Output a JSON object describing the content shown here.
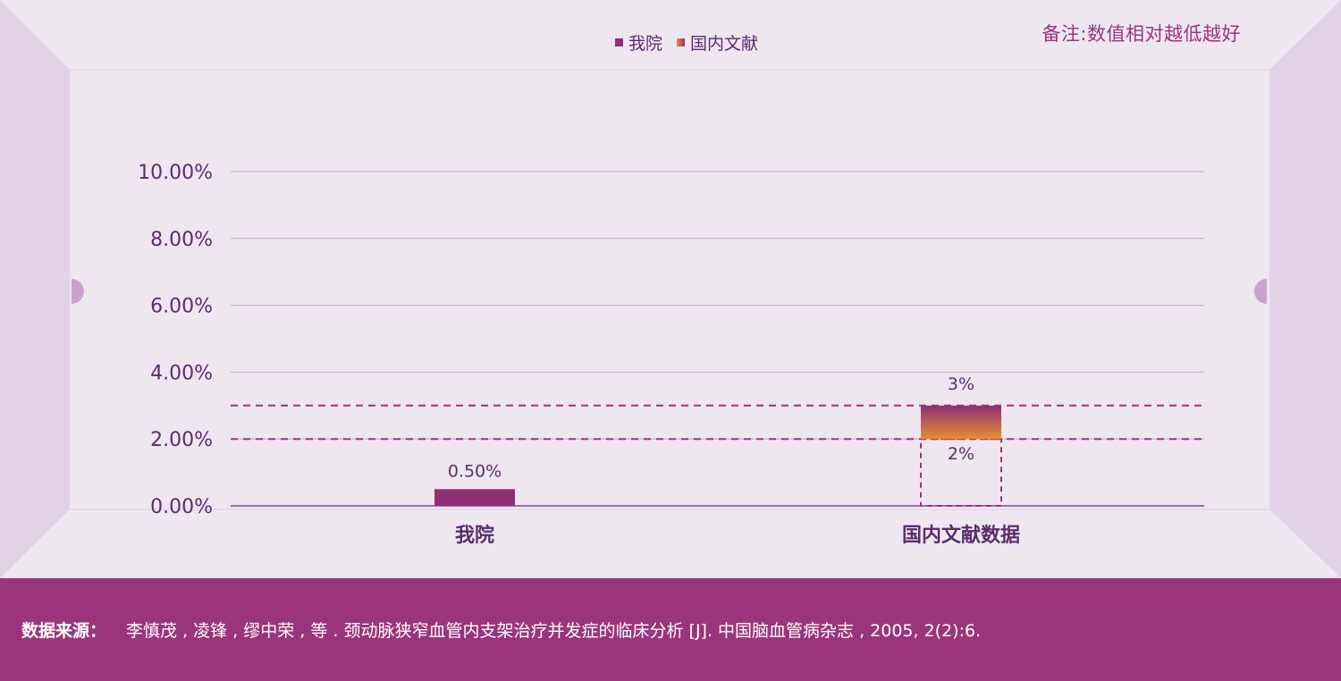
{
  "note": "备注:数值相对越低越好",
  "legend": [
    {
      "label": "我院",
      "color": "#8e2f75"
    },
    {
      "label": "国内文献",
      "color_from": "#e88f2f",
      "color_to": "#8e2f75"
    }
  ],
  "chart_data": {
    "type": "bar",
    "categories": [
      "我院",
      "国内文献数据"
    ],
    "series": [
      {
        "name": "我院",
        "values": [
          0.5,
          null
        ]
      },
      {
        "name": "国内文献",
        "range": [
          2,
          3
        ]
      }
    ],
    "data_labels": [
      "0.50%",
      "3%",
      "2%"
    ],
    "ylim": [
      0,
      10
    ],
    "yticks": [
      0,
      2,
      4,
      6,
      8,
      10
    ],
    "ytick_labels": [
      "0.00%",
      "2.00%",
      "4.00%",
      "6.00%",
      "8.00%",
      "10.00%"
    ],
    "grid": true,
    "legend_position": "top-center"
  },
  "footer": {
    "label": "数据来源：",
    "text": "李慎茂 , 凌锋 , 缪中荣 , 等 . 颈动脉狭窄血管内支架治疗并发症的临床分析 [J]. 中国脑血管病杂志 , 2005, 2(2):6."
  },
  "colors": {
    "accent": "#9a357b",
    "bar": "#8e2f75",
    "gradient_top": "#8e2f75",
    "gradient_bottom": "#e88f2f",
    "text": "#5b2d6e",
    "grid": "#c7a9cc"
  }
}
